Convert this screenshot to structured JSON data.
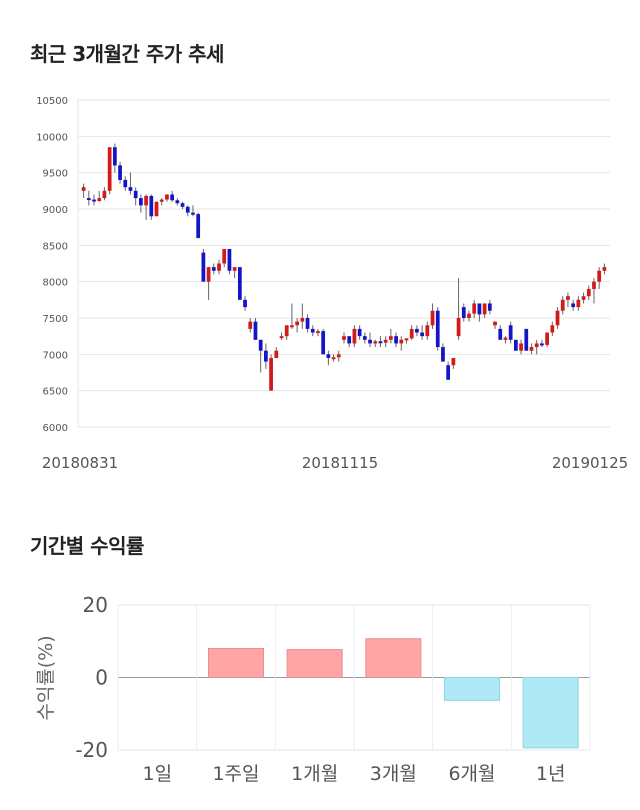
{
  "section1": {
    "title": "최근 3개월간 주가 추세"
  },
  "section2": {
    "title": "기간별 수익률"
  },
  "chart_data": [
    {
      "type": "candlestick",
      "y_ticks": [
        "10500",
        "10000",
        "9500",
        "9000",
        "8500",
        "8000",
        "7500",
        "7000",
        "6500",
        "6000"
      ],
      "ylim": [
        6000,
        10500
      ],
      "x_tick_labels": [
        "20180831",
        "20181115",
        "20190125"
      ],
      "colors": {
        "up": "#d11a1a",
        "down": "#1515c8",
        "wick": "#666666"
      },
      "candles": [
        [
          9250,
          9350,
          9150,
          9300
        ],
        [
          9150,
          9250,
          9050,
          9130
        ],
        [
          9130,
          9200,
          9050,
          9110
        ],
        [
          9110,
          9250,
          9100,
          9150
        ],
        [
          9150,
          9300,
          9120,
          9250
        ],
        [
          9250,
          9850,
          9200,
          9850
        ],
        [
          9850,
          9900,
          9500,
          9600
        ],
        [
          9600,
          9650,
          9350,
          9400
        ],
        [
          9400,
          9450,
          9250,
          9300
        ],
        [
          9300,
          9500,
          9200,
          9250
        ],
        [
          9250,
          9300,
          9050,
          9150
        ],
        [
          9150,
          9200,
          8950,
          9050
        ],
        [
          9050,
          9200,
          8850,
          9180
        ],
        [
          9180,
          9200,
          8850,
          8900
        ],
        [
          8900,
          9100,
          8900,
          9100
        ],
        [
          9100,
          9150,
          9050,
          9130
        ],
        [
          9130,
          9200,
          9100,
          9200
        ],
        [
          9200,
          9250,
          9100,
          9120
        ],
        [
          9120,
          9150,
          9050,
          9080
        ],
        [
          9080,
          9100,
          9000,
          9030
        ],
        [
          9030,
          9050,
          8900,
          8950
        ],
        [
          8950,
          9050,
          8900,
          8930
        ],
        [
          8930,
          8950,
          8600,
          8600
        ],
        [
          8400,
          8450,
          8000,
          8000
        ],
        [
          8000,
          8200,
          7750,
          8200
        ],
        [
          8200,
          8250,
          8100,
          8150
        ],
        [
          8150,
          8300,
          8100,
          8250
        ],
        [
          8250,
          8450,
          8200,
          8450
        ],
        [
          8450,
          8450,
          8100,
          8150
        ],
        [
          8150,
          8200,
          8050,
          8200
        ],
        [
          8200,
          8200,
          7750,
          7750
        ],
        [
          7750,
          7800,
          7600,
          7650
        ],
        [
          7350,
          7500,
          7300,
          7450
        ],
        [
          7450,
          7500,
          7200,
          7200
        ],
        [
          7200,
          7200,
          6750,
          7050
        ],
        [
          7050,
          7150,
          6800,
          6900
        ],
        [
          6500,
          7000,
          6500,
          6950
        ],
        [
          6950,
          7100,
          6950,
          7050
        ],
        [
          7250,
          7300,
          7200,
          7250
        ],
        [
          7250,
          7400,
          7200,
          7400
        ],
        [
          7400,
          7700,
          7350,
          7400
        ],
        [
          7400,
          7500,
          7300,
          7450
        ],
        [
          7450,
          7700,
          7350,
          7500
        ],
        [
          7500,
          7550,
          7300,
          7350
        ],
        [
          7350,
          7400,
          7250,
          7300
        ],
        [
          7300,
          7350,
          7250,
          7320
        ],
        [
          7320,
          7350,
          7000,
          7000
        ],
        [
          7000,
          7050,
          6850,
          6950
        ],
        [
          6950,
          7000,
          6900,
          6960
        ],
        [
          6960,
          7050,
          6900,
          7000
        ],
        [
          7200,
          7300,
          7150,
          7250
        ],
        [
          7250,
          7250,
          7100,
          7150
        ],
        [
          7150,
          7400,
          7100,
          7350
        ],
        [
          7350,
          7400,
          7200,
          7250
        ],
        [
          7250,
          7300,
          7150,
          7200
        ],
        [
          7200,
          7300,
          7100,
          7150
        ],
        [
          7150,
          7200,
          7100,
          7180
        ],
        [
          7180,
          7250,
          7100,
          7160
        ],
        [
          7160,
          7250,
          7100,
          7200
        ],
        [
          7200,
          7350,
          7150,
          7250
        ],
        [
          7250,
          7300,
          7100,
          7150
        ],
        [
          7150,
          7250,
          7050,
          7200
        ],
        [
          7200,
          7200,
          7150,
          7220
        ],
        [
          7220,
          7400,
          7200,
          7350
        ],
        [
          7350,
          7400,
          7250,
          7300
        ],
        [
          7300,
          7400,
          7200,
          7250
        ],
        [
          7250,
          7450,
          7200,
          7400
        ],
        [
          7400,
          7700,
          7350,
          7600
        ],
        [
          7600,
          7650,
          7050,
          7100
        ],
        [
          7100,
          7150,
          6900,
          6900
        ],
        [
          6850,
          6900,
          6650,
          6650
        ],
        [
          6850,
          6950,
          6800,
          6950
        ],
        [
          7250,
          8050,
          7200,
          7500
        ],
        [
          7650,
          7700,
          7450,
          7500
        ],
        [
          7500,
          7600,
          7450,
          7560
        ],
        [
          7560,
          7750,
          7500,
          7700
        ],
        [
          7700,
          7700,
          7450,
          7550
        ],
        [
          7550,
          7700,
          7500,
          7700
        ],
        [
          7700,
          7750,
          7550,
          7600
        ],
        [
          7400,
          7450,
          7350,
          7450
        ],
        [
          7350,
          7400,
          7200,
          7200
        ],
        [
          7200,
          7250,
          7150,
          7230
        ],
        [
          7400,
          7450,
          7150,
          7200
        ],
        [
          7200,
          7200,
          7050,
          7050
        ],
        [
          7050,
          7200,
          7000,
          7150
        ],
        [
          7350,
          7350,
          7050,
          7050
        ],
        [
          7050,
          7150,
          7000,
          7100
        ],
        [
          7100,
          7200,
          7000,
          7150
        ],
        [
          7150,
          7200,
          7100,
          7130
        ],
        [
          7130,
          7300,
          7100,
          7300
        ],
        [
          7300,
          7450,
          7250,
          7400
        ],
        [
          7400,
          7650,
          7350,
          7600
        ],
        [
          7600,
          7800,
          7550,
          7750
        ],
        [
          7750,
          7850,
          7650,
          7800
        ],
        [
          7700,
          7750,
          7600,
          7650
        ],
        [
          7650,
          7800,
          7600,
          7750
        ],
        [
          7750,
          7850,
          7700,
          7800
        ],
        [
          7800,
          7950,
          7750,
          7900
        ],
        [
          7900,
          8050,
          7700,
          8000
        ],
        [
          8000,
          8200,
          7900,
          8150
        ],
        [
          8150,
          8250,
          8100,
          8200
        ]
      ]
    },
    {
      "type": "bar",
      "categories": [
        "1일",
        "1주일",
        "1개월",
        "3개월",
        "6개월",
        "1년"
      ],
      "values": [
        0,
        8,
        7.7,
        10.7,
        -6.3,
        -19.4
      ],
      "ylim": [
        -20,
        20
      ],
      "y_ticks": [
        "20",
        "0",
        "-20"
      ],
      "ylabel": "수익률(%)",
      "colors": {
        "positive": "#ffa5a5",
        "negative": "#aee9f5"
      }
    }
  ]
}
